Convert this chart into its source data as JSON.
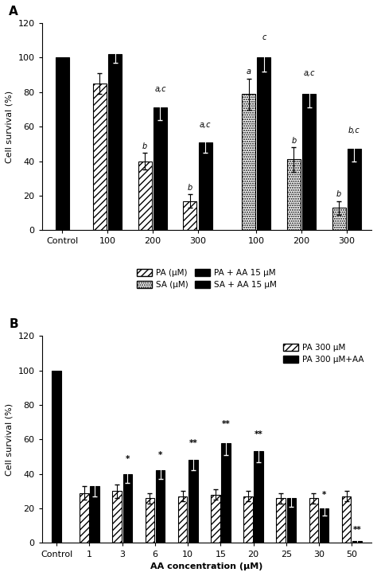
{
  "panel_A": {
    "ylabel": "Cell survival (%)",
    "ylim": [
      0,
      120
    ],
    "yticks": [
      0,
      20,
      40,
      60,
      80,
      100,
      120
    ],
    "control_value": 100,
    "PA_bars": {
      "values": [
        85,
        40,
        17
      ],
      "errors": [
        6,
        5,
        4
      ]
    },
    "PA_AA_bars": {
      "values": [
        102,
        71,
        51
      ],
      "errors": [
        5,
        7,
        6
      ]
    },
    "SA_bars": {
      "values": [
        79,
        41,
        13
      ],
      "errors": [
        9,
        7,
        4
      ]
    },
    "SA_AA_bars": {
      "values": [
        100,
        79,
        47
      ],
      "errors": [
        8,
        8,
        7
      ]
    },
    "pa_annots": [
      null,
      "b",
      "b"
    ],
    "pa_aa_annots": [
      null,
      "a,c",
      "a,c"
    ],
    "sa_annots": [
      "a",
      "b",
      "b"
    ],
    "sa_aa_annots": [
      "c",
      "a,c",
      "b,c"
    ],
    "xtick_labels": [
      "Control",
      "100",
      "200",
      "300",
      "100",
      "200",
      "300"
    ],
    "legend_labels": [
      "PA (μM)",
      "PA + AA 15 μM",
      "SA (μM)",
      "SA + AA 15 μM"
    ]
  },
  "panel_B": {
    "ylabel": "Cell survival (%)",
    "xlabel": "AA concentration (μM)",
    "ylim": [
      0,
      120
    ],
    "yticks": [
      0,
      20,
      40,
      60,
      80,
      100,
      120
    ],
    "xtick_labels": [
      "Control",
      "1",
      "3",
      "6",
      "10",
      "15",
      "20",
      "25",
      "30",
      "50"
    ],
    "control_black_bar": 100,
    "PA_bars": {
      "values": [
        29,
        30,
        26,
        27,
        28,
        27,
        26,
        26,
        27
      ],
      "errors": [
        4,
        4,
        3,
        3,
        3,
        3,
        3,
        3,
        3
      ]
    },
    "PA_AA_bars": {
      "values": [
        33,
        40,
        42,
        48,
        58,
        53,
        26,
        20,
        1
      ],
      "errors": [
        6,
        5,
        5,
        6,
        7,
        6,
        5,
        4,
        3
      ]
    },
    "annotations": [
      "",
      "*",
      "*",
      "**",
      "**",
      "**",
      "",
      "*",
      "**"
    ],
    "legend_labels": [
      "PA 300 μM",
      "PA 300 μM+AA"
    ]
  },
  "fontsize": 8,
  "title_fontsize": 11,
  "background": "white"
}
